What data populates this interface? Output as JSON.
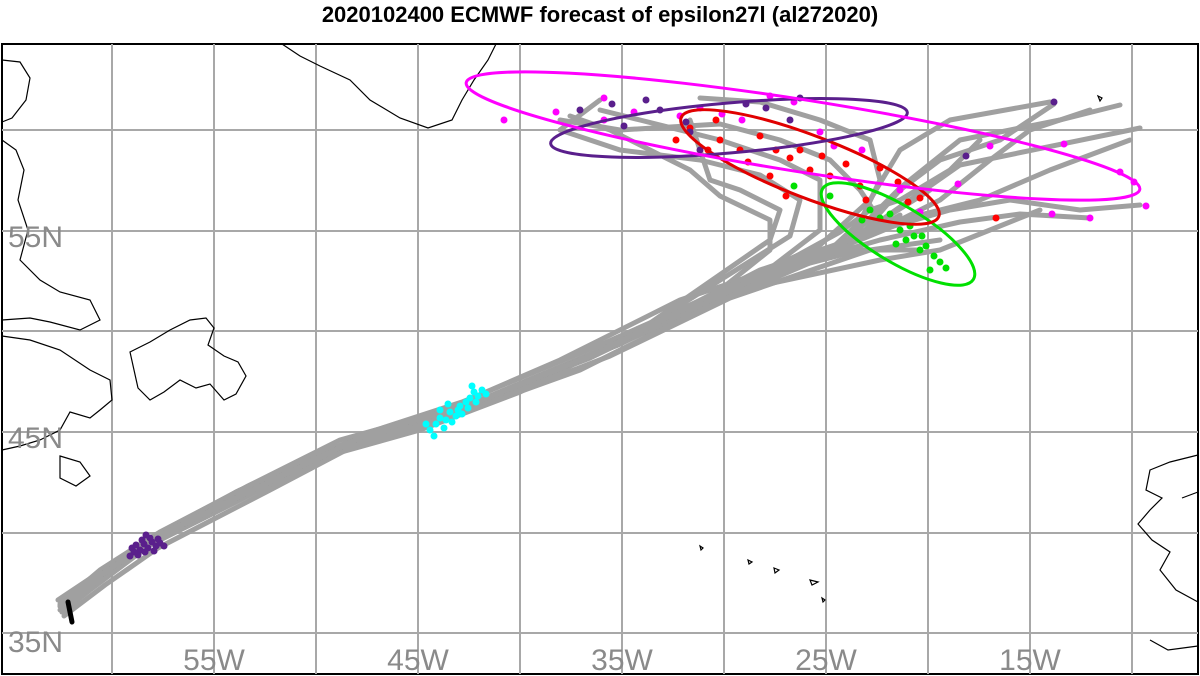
{
  "title": "2020102400 ECMWF forecast of epsilon27l (al272020)",
  "lon_labels": [
    "55W",
    "45W",
    "35W",
    "25W",
    "15W"
  ],
  "lat_labels": [
    "55N",
    "45N",
    "35N"
  ],
  "colors": {
    "track": "#a0a0a0",
    "grid": "#a8a8a8",
    "coast": "#000000",
    "initial": "#000000",
    "stage1": "#5a1f8c",
    "stage2": "#00ffff",
    "stage3": "#00e000",
    "stage4": "#ff0000",
    "stage5": "#5a1f8c",
    "stage6": "#ff00ff"
  },
  "map_extent": {
    "lon": [
      -63,
      -7
    ],
    "lat": [
      34,
      63
    ]
  }
}
